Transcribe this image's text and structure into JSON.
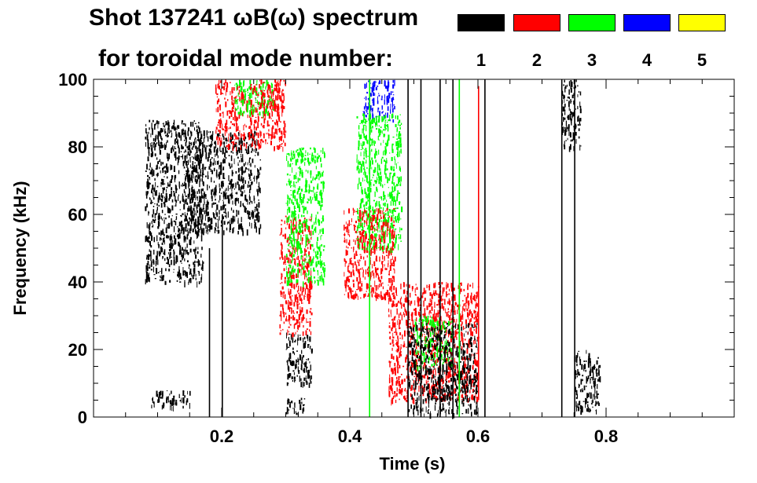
{
  "header": {
    "title_line1": "Shot 137241 ωB(ω) spectrum",
    "title_line2": "for toroidal mode number:"
  },
  "legend": [
    {
      "mode": "1",
      "color": "#000000"
    },
    {
      "mode": "2",
      "color": "#ff0000"
    },
    {
      "mode": "3",
      "color": "#00ff00"
    },
    {
      "mode": "4",
      "color": "#0000ff"
    },
    {
      "mode": "5",
      "color": "#ffff00"
    }
  ],
  "chart_data": {
    "type": "heatmap",
    "title": "Shot 137241 ωB(ω) spectrum for toroidal mode number: 1 2 3 4 5",
    "xlabel": "Time (s)",
    "ylabel": "Frequency (kHz)",
    "xlim": [
      0.0,
      1.0
    ],
    "ylim": [
      0,
      100
    ],
    "x_ticks": [
      {
        "value": 0.2,
        "label": "0.2"
      },
      {
        "value": 0.4,
        "label": "0.4"
      },
      {
        "value": 0.6,
        "label": "0.6"
      },
      {
        "value": 0.8,
        "label": "0.8"
      }
    ],
    "y_ticks": [
      {
        "value": 0,
        "label": "0"
      },
      {
        "value": 20,
        "label": "20"
      },
      {
        "value": 40,
        "label": "40"
      },
      {
        "value": 60,
        "label": "60"
      },
      {
        "value": 80,
        "label": "80"
      },
      {
        "value": 100,
        "label": "100"
      }
    ],
    "x_minor_step": 0.05,
    "y_minor_step": 5,
    "mode_colors": {
      "1": "#000000",
      "2": "#ff0000",
      "3": "#00ff00",
      "4": "#0000ff",
      "5": "#ffff00"
    },
    "regions": [
      {
        "mode": "1",
        "t": [
          0.08,
          0.17
        ],
        "f": [
          40,
          88
        ],
        "note": "broadband n=1 early"
      },
      {
        "mode": "1",
        "t": [
          0.09,
          0.15
        ],
        "f": [
          3,
          8
        ],
        "note": "low-frequency band"
      },
      {
        "mode": "1",
        "t": [
          0.14,
          0.26
        ],
        "f": [
          55,
          85
        ]
      },
      {
        "mode": "2",
        "t": [
          0.19,
          0.3
        ],
        "f": [
          80,
          100
        ]
      },
      {
        "mode": "3",
        "t": [
          0.22,
          0.28
        ],
        "f": [
          90,
          100
        ]
      },
      {
        "mode": "2",
        "t": [
          0.26,
          0.29
        ],
        "f": [
          90,
          100
        ],
        "note": "red column"
      },
      {
        "mode": "2",
        "t": [
          0.29,
          0.34
        ],
        "f": [
          25,
          60
        ],
        "note": "descending n=2 chirp"
      },
      {
        "mode": "3",
        "t": [
          0.3,
          0.36
        ],
        "f": [
          40,
          80
        ],
        "note": "descending n=3 chirp"
      },
      {
        "mode": "1",
        "t": [
          0.3,
          0.34
        ],
        "f": [
          10,
          25
        ]
      },
      {
        "mode": "1",
        "t": [
          0.3,
          0.33
        ],
        "f": [
          1,
          6
        ]
      },
      {
        "mode": "4",
        "t": [
          0.42,
          0.47
        ],
        "f": [
          88,
          100
        ]
      },
      {
        "mode": "3",
        "t": [
          0.41,
          0.48
        ],
        "f": [
          50,
          90
        ]
      },
      {
        "mode": "2",
        "t": [
          0.39,
          0.47
        ],
        "f": [
          35,
          62
        ]
      },
      {
        "mode": "2",
        "t": [
          0.46,
          0.6
        ],
        "f": [
          5,
          40
        ],
        "note": "descending n=2 chirp"
      },
      {
        "mode": "3",
        "t": [
          0.5,
          0.56
        ],
        "f": [
          15,
          30
        ]
      },
      {
        "mode": "1",
        "t": [
          0.49,
          0.6
        ],
        "f": [
          1,
          28
        ],
        "note": "strong n=1 burst"
      },
      {
        "mode": "1",
        "t": [
          0.73,
          0.76
        ],
        "f": [
          80,
          100
        ]
      },
      {
        "mode": "1",
        "t": [
          0.75,
          0.79
        ],
        "f": [
          2,
          20
        ]
      }
    ],
    "vertical_lines": [
      {
        "mode": "1",
        "t": 0.49,
        "f": [
          0,
          100
        ]
      },
      {
        "mode": "1",
        "t": 0.51,
        "f": [
          0,
          100
        ]
      },
      {
        "mode": "1",
        "t": 0.54,
        "f": [
          0,
          100
        ]
      },
      {
        "mode": "1",
        "t": 0.56,
        "f": [
          0,
          100
        ]
      },
      {
        "mode": "1",
        "t": 0.61,
        "f": [
          0,
          100
        ]
      },
      {
        "mode": "1",
        "t": 0.73,
        "f": [
          0,
          100
        ]
      },
      {
        "mode": "1",
        "t": 0.75,
        "f": [
          0,
          100
        ]
      },
      {
        "mode": "2",
        "t": 0.6,
        "f": [
          5,
          98
        ]
      },
      {
        "mode": "3",
        "t": 0.43,
        "f": [
          0,
          100
        ]
      },
      {
        "mode": "3",
        "t": 0.57,
        "f": [
          0,
          100
        ]
      },
      {
        "mode": "1",
        "t": 0.2,
        "f": [
          0,
          60
        ]
      },
      {
        "mode": "1",
        "t": 0.18,
        "f": [
          0,
          50
        ]
      }
    ]
  }
}
